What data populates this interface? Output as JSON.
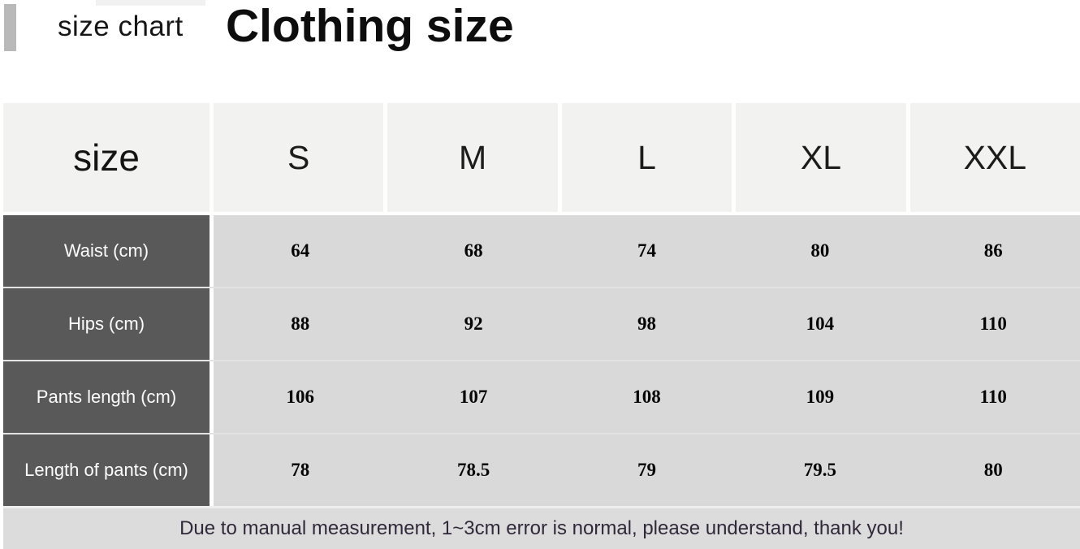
{
  "header": {
    "eyebrow": "size chart",
    "title": "Clothing size"
  },
  "table": {
    "corner_label": "size",
    "columns": [
      "S",
      "M",
      "L",
      "XL",
      "XXL"
    ],
    "rows": [
      {
        "label": "Waist (cm)",
        "values": [
          "64",
          "68",
          "74",
          "80",
          "86"
        ]
      },
      {
        "label": "Hips (cm)",
        "values": [
          "88",
          "92",
          "98",
          "104",
          "110"
        ]
      },
      {
        "label": "Pants length (cm)",
        "values": [
          "106",
          "107",
          "108",
          "109",
          "110"
        ]
      },
      {
        "label": "Length of pants (cm)",
        "values": [
          "78",
          "78.5",
          "79",
          "79.5",
          "80"
        ]
      }
    ]
  },
  "note": "Due to manual measurement, 1~3cm error is normal, please understand, thank you!",
  "colors": {
    "accent_bar": "#b9b9b9",
    "header_cell_bg": "#f2f2f1",
    "label_cell_bg": "#595959",
    "value_cell_bg": "#d9d9d9",
    "note_bg": "#dcdcdc",
    "note_text": "#31283a"
  },
  "chart_data": {
    "type": "table",
    "title": "Clothing size",
    "columns": [
      "size",
      "S",
      "M",
      "L",
      "XL",
      "XXL"
    ],
    "rows": [
      [
        "Waist (cm)",
        64,
        68,
        74,
        80,
        86
      ],
      [
        "Hips (cm)",
        88,
        92,
        98,
        104,
        110
      ],
      [
        "Pants length (cm)",
        106,
        107,
        108,
        109,
        110
      ],
      [
        "Length of pants (cm)",
        78,
        78.5,
        79,
        79.5,
        80
      ]
    ],
    "note": "Due to manual measurement, 1~3cm error is normal, please understand, thank you!"
  }
}
